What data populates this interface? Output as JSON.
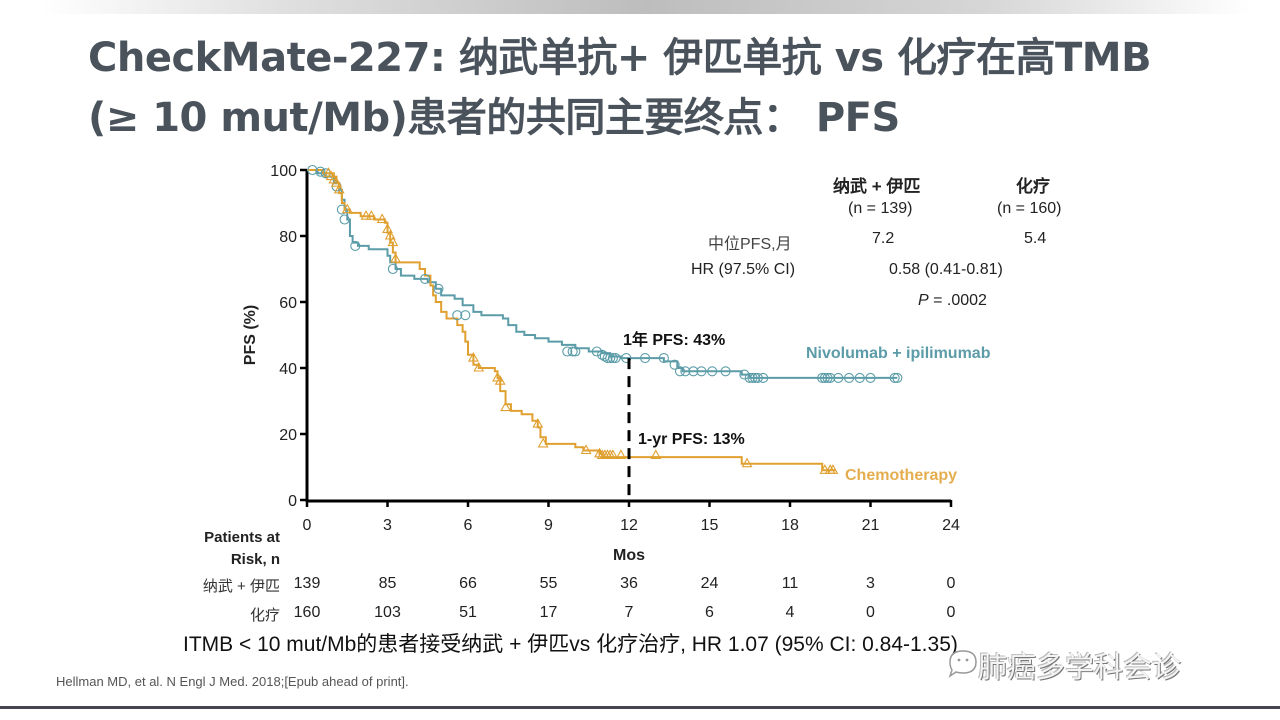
{
  "title": {
    "line1": "CheckMate-227: 纳武单抗+ 伊匹单抗 vs 化疗在高TMB",
    "line2": "(≥ 10 mut/Mb)患者的共同主要终点： PFS"
  },
  "stats_table": {
    "col1_header": "纳武 + 伊匹",
    "col2_header": "化疗",
    "col1_n": "(n = 139)",
    "col2_n": "(n = 160)",
    "median_label": "中位PFS,月",
    "median_col1": "7.2",
    "median_col2": "5.4",
    "hr_label": "HR (97.5% CI)",
    "hr_value": "0.58 (0.41-0.81)",
    "p_label": "P",
    "p_value": " = .0002"
  },
  "chart_data": {
    "type": "line",
    "subtype": "kaplan-meier",
    "xlabel": "Mos",
    "ylabel": "PFS (%)",
    "xlim": [
      0,
      24
    ],
    "ylim": [
      0,
      100
    ],
    "xticks": [
      "0",
      "3",
      "6",
      "9",
      "12",
      "15",
      "18",
      "21",
      "24"
    ],
    "yticks": [
      "0",
      "20",
      "40",
      "60",
      "80",
      "100"
    ],
    "grid": false,
    "annotations": {
      "nivo_1yr": "1年 PFS: 43%",
      "chemo_1yr": "1-yr PFS: 13%",
      "reference_month": 12
    },
    "series": [
      {
        "name": "Nivolumab + ipilimumab",
        "color": "#5b9ca8",
        "marker": "circle",
        "steps": [
          [
            0,
            100
          ],
          [
            0.4,
            99
          ],
          [
            0.7,
            98
          ],
          [
            1.0,
            96
          ],
          [
            1.2,
            94
          ],
          [
            1.3,
            91
          ],
          [
            1.4,
            88
          ],
          [
            1.5,
            85
          ],
          [
            1.6,
            80
          ],
          [
            1.7,
            78
          ],
          [
            1.9,
            77
          ],
          [
            2.3,
            76
          ],
          [
            2.8,
            76
          ],
          [
            3.0,
            74
          ],
          [
            3.1,
            72
          ],
          [
            3.3,
            70
          ],
          [
            3.5,
            68
          ],
          [
            4.0,
            67
          ],
          [
            4.5,
            66
          ],
          [
            4.8,
            64
          ],
          [
            5.0,
            62
          ],
          [
            5.5,
            61
          ],
          [
            5.8,
            59
          ],
          [
            6.2,
            57
          ],
          [
            6.5,
            56
          ],
          [
            7.3,
            55
          ],
          [
            7.5,
            53
          ],
          [
            7.8,
            51
          ],
          [
            8.1,
            50
          ],
          [
            8.5,
            49
          ],
          [
            9.0,
            48
          ],
          [
            9.5,
            47
          ],
          [
            10.0,
            46
          ],
          [
            10.5,
            45
          ],
          [
            11.0,
            44.5
          ],
          [
            11.3,
            43.5
          ],
          [
            11.7,
            43
          ],
          [
            13.3,
            42
          ],
          [
            13.8,
            40
          ],
          [
            14.0,
            39
          ],
          [
            16.2,
            38
          ],
          [
            16.5,
            37
          ],
          [
            22.0,
            37
          ]
        ],
        "censors": [
          [
            0.2,
            100
          ],
          [
            0.5,
            99.5
          ],
          [
            0.7,
            99
          ],
          [
            1.1,
            95
          ],
          [
            1.3,
            88
          ],
          [
            1.4,
            85
          ],
          [
            1.8,
            77
          ],
          [
            3.2,
            70
          ],
          [
            4.4,
            67
          ],
          [
            4.9,
            64
          ],
          [
            5.6,
            56
          ],
          [
            5.9,
            56
          ],
          [
            9.7,
            45
          ],
          [
            9.9,
            45
          ],
          [
            10.0,
            45
          ],
          [
            10.8,
            45
          ],
          [
            11.0,
            44
          ],
          [
            11.1,
            43.5
          ],
          [
            11.2,
            43
          ],
          [
            11.3,
            43
          ],
          [
            11.4,
            43
          ],
          [
            11.5,
            43
          ],
          [
            11.9,
            43
          ],
          [
            12.6,
            43
          ],
          [
            13.3,
            43
          ],
          [
            13.7,
            41
          ],
          [
            13.9,
            39
          ],
          [
            14.1,
            39
          ],
          [
            14.4,
            39
          ],
          [
            14.7,
            39
          ],
          [
            15.1,
            39
          ],
          [
            15.6,
            39
          ],
          [
            16.3,
            38
          ],
          [
            16.5,
            37
          ],
          [
            16.6,
            37
          ],
          [
            16.7,
            37
          ],
          [
            16.8,
            37
          ],
          [
            17.0,
            37
          ],
          [
            19.2,
            37
          ],
          [
            19.3,
            37
          ],
          [
            19.4,
            37
          ],
          [
            19.5,
            37
          ],
          [
            19.8,
            37
          ],
          [
            20.2,
            37
          ],
          [
            20.6,
            37
          ],
          [
            21.0,
            37
          ],
          [
            21.9,
            37
          ],
          [
            22.0,
            37
          ]
        ]
      },
      {
        "name": "Chemotherapy",
        "color": "#e0a030",
        "marker": "triangle",
        "steps": [
          [
            0,
            100
          ],
          [
            0.6,
            99
          ],
          [
            1.0,
            98
          ],
          [
            1.1,
            96
          ],
          [
            1.2,
            93
          ],
          [
            1.3,
            90
          ],
          [
            1.4,
            88
          ],
          [
            1.6,
            87
          ],
          [
            2.0,
            86
          ],
          [
            2.5,
            85
          ],
          [
            2.9,
            84
          ],
          [
            3.0,
            81
          ],
          [
            3.1,
            78
          ],
          [
            3.2,
            75
          ],
          [
            3.3,
            72
          ],
          [
            4.2,
            70
          ],
          [
            4.4,
            68
          ],
          [
            4.6,
            65
          ],
          [
            4.7,
            62
          ],
          [
            4.8,
            60
          ],
          [
            5.0,
            57
          ],
          [
            5.2,
            55
          ],
          [
            5.6,
            53
          ],
          [
            5.8,
            51
          ],
          [
            5.9,
            48
          ],
          [
            6.0,
            44
          ],
          [
            6.2,
            41
          ],
          [
            6.4,
            40
          ],
          [
            7.0,
            39
          ],
          [
            7.1,
            37
          ],
          [
            7.2,
            33
          ],
          [
            7.4,
            29
          ],
          [
            7.6,
            27
          ],
          [
            8.0,
            26
          ],
          [
            8.4,
            24
          ],
          [
            8.6,
            22
          ],
          [
            8.7,
            19
          ],
          [
            8.9,
            17
          ],
          [
            10.0,
            16
          ],
          [
            10.3,
            15
          ],
          [
            10.9,
            14
          ],
          [
            11.0,
            13
          ],
          [
            16.2,
            11
          ],
          [
            19.0,
            11
          ],
          [
            19.2,
            9
          ],
          [
            19.7,
            9
          ]
        ],
        "censors": [
          [
            0.8,
            99
          ],
          [
            0.9,
            98
          ],
          [
            1.0,
            97
          ],
          [
            1.1,
            96
          ],
          [
            1.2,
            94
          ],
          [
            1.5,
            88
          ],
          [
            2.2,
            86
          ],
          [
            2.4,
            86
          ],
          [
            2.8,
            85
          ],
          [
            3.0,
            82
          ],
          [
            3.1,
            80
          ],
          [
            3.2,
            78
          ],
          [
            3.3,
            73
          ],
          [
            6.2,
            43
          ],
          [
            6.4,
            40
          ],
          [
            7.1,
            37
          ],
          [
            7.2,
            36
          ],
          [
            7.4,
            28
          ],
          [
            8.6,
            23
          ],
          [
            8.8,
            17
          ],
          [
            10.4,
            15
          ],
          [
            10.9,
            14
          ],
          [
            11.0,
            13.5
          ],
          [
            11.1,
            13.5
          ],
          [
            11.2,
            13.5
          ],
          [
            11.3,
            13.5
          ],
          [
            11.4,
            13.5
          ],
          [
            11.7,
            13.5
          ],
          [
            13.0,
            13.5
          ],
          [
            16.4,
            11
          ],
          [
            19.3,
            9
          ],
          [
            19.5,
            9
          ],
          [
            19.6,
            9
          ]
        ]
      }
    ]
  },
  "risk_table": {
    "title_line1": "Patients at",
    "title_line2": "Risk, n",
    "rows": [
      {
        "label": "纳武 + 伊匹",
        "values": [
          "139",
          "85",
          "66",
          "55",
          "36",
          "24",
          "11",
          "3",
          "0"
        ]
      },
      {
        "label": "化疗",
        "values": [
          "160",
          "103",
          "51",
          "17",
          "7",
          "6",
          "4",
          "0",
          "0"
        ]
      }
    ]
  },
  "footnote": "ITMB < 10 mut/Mb的患者接受纳武 + 伊匹vs 化疗治疗, HR  1.07 (95% CI: 0.84-1.35)",
  "citation": "Hellman MD, et al. N Engl J Med. 2018;[Epub ahead of print].",
  "watermark": "肺癌多学科会诊",
  "colors": {
    "nivo": "#5b9ca8",
    "chemo": "#e0a030",
    "title": "#4a535c",
    "axis": "#000000"
  }
}
